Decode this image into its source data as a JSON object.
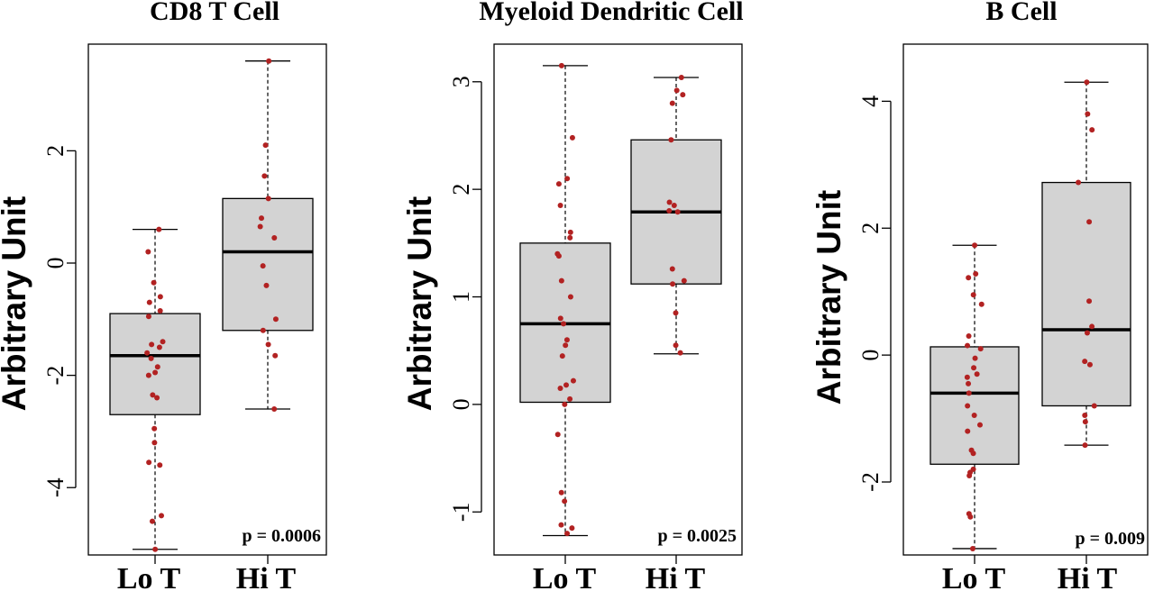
{
  "colors": {
    "box_fill": "#d3d3d3",
    "point": "#b22222",
    "stroke": "#000000"
  },
  "chart_data": [
    {
      "type": "box",
      "title": "CD8 T Cell",
      "ylabel": "Arbitrary Unit",
      "ylim": [
        -5.2,
        3.9
      ],
      "yticks": [
        -4,
        -2,
        0,
        2
      ],
      "ytick_labels": [
        "-4",
        "-2",
        "0",
        "2"
      ],
      "categories": [
        "Lo T",
        "Hi T"
      ],
      "annotation": "p = 0.0006",
      "boxes": [
        {
          "category": "Lo T",
          "whisker_low": -5.1,
          "q1": -2.7,
          "median": -1.65,
          "q3": -0.9,
          "whisker_high": 0.6
        },
        {
          "category": "Hi T",
          "whisker_low": -2.6,
          "q1": -1.2,
          "median": 0.2,
          "q3": 1.15,
          "whisker_high": 3.6
        }
      ],
      "points": [
        {
          "category": "Lo T",
          "values": [
            0.6,
            0.2,
            -0.35,
            -0.6,
            -0.7,
            -0.85,
            -0.95,
            -1.4,
            -1.45,
            -1.5,
            -1.6,
            -1.7,
            -1.85,
            -1.95,
            -2.0,
            -2.35,
            -2.4,
            -2.95,
            -3.2,
            -3.55,
            -3.6,
            -4.5,
            -4.6,
            -5.1
          ]
        },
        {
          "category": "Hi T",
          "values": [
            3.6,
            2.1,
            1.55,
            1.15,
            0.8,
            0.65,
            0.45,
            -0.05,
            -0.4,
            -1.0,
            -1.2,
            -1.45,
            -1.65,
            -2.6
          ]
        }
      ]
    },
    {
      "type": "box",
      "title": "Myeloid Dendritic Cell",
      "ylabel": "Arbitrary Unit",
      "ylim": [
        -1.4,
        3.35
      ],
      "yticks": [
        -1,
        0,
        1,
        2,
        3
      ],
      "ytick_labels": [
        "-1",
        "0",
        "1",
        "2",
        "3"
      ],
      "categories": [
        "Lo T",
        "Hi T"
      ],
      "annotation": "p = 0.0025",
      "boxes": [
        {
          "category": "Lo T",
          "whisker_low": -1.22,
          "q1": 0.02,
          "median": 0.75,
          "q3": 1.5,
          "whisker_high": 3.15
        },
        {
          "category": "Hi T",
          "whisker_low": 0.47,
          "q1": 1.12,
          "median": 1.79,
          "q3": 2.46,
          "whisker_high": 3.04
        }
      ],
      "points": [
        {
          "category": "Lo T",
          "values": [
            3.15,
            2.48,
            2.1,
            2.05,
            1.85,
            1.6,
            1.55,
            1.4,
            1.38,
            1.15,
            1.0,
            0.8,
            0.75,
            0.6,
            0.55,
            0.45,
            0.22,
            0.18,
            0.15,
            0.05,
            0.0,
            -0.28,
            -0.82,
            -0.9,
            -1.12,
            -1.15,
            -1.2
          ]
        },
        {
          "category": "Hi T",
          "values": [
            3.04,
            2.92,
            2.88,
            2.8,
            2.46,
            1.88,
            1.85,
            1.8,
            1.79,
            1.26,
            1.15,
            1.12,
            0.85,
            0.55,
            0.48
          ]
        }
      ]
    },
    {
      "type": "box",
      "title": "B Cell",
      "ylabel": "Arbitrary Unit",
      "ylim": [
        -3.15,
        4.9
      ],
      "yticks": [
        -2,
        0,
        2,
        4
      ],
      "ytick_labels": [
        "-2",
        "0",
        "2",
        "4"
      ],
      "categories": [
        "Lo T",
        "Hi T"
      ],
      "annotation": "p = 0.009",
      "boxes": [
        {
          "category": "Lo T",
          "whisker_low": -3.05,
          "q1": -1.72,
          "median": -0.6,
          "q3": 0.13,
          "whisker_high": 1.73
        },
        {
          "category": "Hi T",
          "whisker_low": -1.42,
          "q1": -0.8,
          "median": 0.4,
          "q3": 2.72,
          "whisker_high": 4.3
        }
      ],
      "points": [
        {
          "category": "Lo T",
          "values": [
            1.73,
            1.28,
            1.22,
            0.95,
            0.8,
            0.3,
            0.15,
            0.1,
            -0.05,
            -0.2,
            -0.3,
            -0.35,
            -0.45,
            -0.6,
            -0.8,
            -0.95,
            -1.1,
            -1.2,
            -1.5,
            -1.55,
            -1.8,
            -1.85,
            -1.9,
            -2.5,
            -2.55,
            -3.05
          ]
        },
        {
          "category": "Hi T",
          "values": [
            4.3,
            3.8,
            3.55,
            2.72,
            2.1,
            0.85,
            0.45,
            0.35,
            -0.1,
            -0.15,
            -0.8,
            -0.95,
            -1.05,
            -1.42
          ]
        }
      ]
    }
  ]
}
